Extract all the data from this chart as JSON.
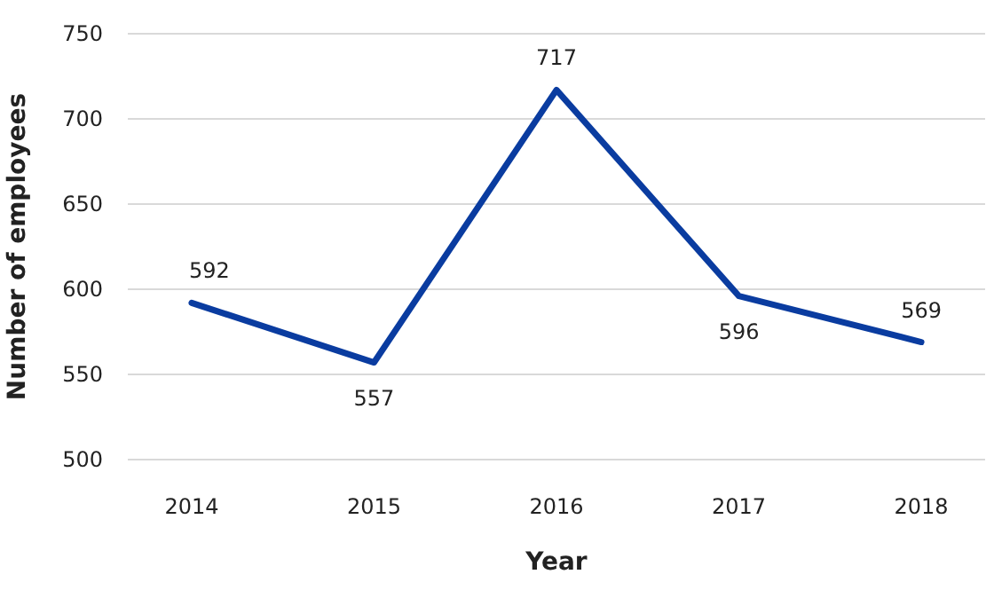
{
  "chart_data": {
    "type": "line",
    "xlabel": "Year",
    "ylabel": "Number of employees",
    "categories": [
      "2014",
      "2015",
      "2016",
      "2017",
      "2018"
    ],
    "series": [
      {
        "color": "#0a3ca0",
        "values": [
          592,
          557,
          717,
          596,
          569
        ]
      }
    ],
    "ylim": [
      500,
      750
    ],
    "yticks": [
      500,
      550,
      600,
      650,
      700,
      750
    ],
    "grid": "y",
    "data_labels": true,
    "marker": "none",
    "line_style": "solid"
  }
}
